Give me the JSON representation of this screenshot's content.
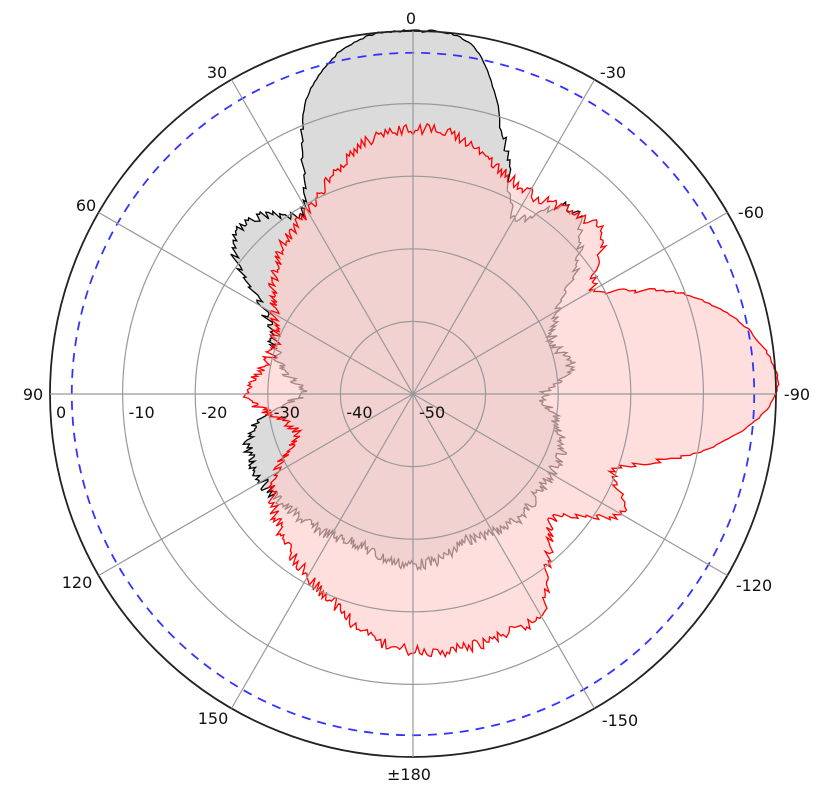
{
  "chart_data": {
    "type": "polar",
    "angle_direction": "counterclockwise-positive, 0 at top",
    "angle_ticks": [
      0,
      30,
      60,
      90,
      120,
      150,
      180,
      -150,
      -120,
      -90,
      -60,
      -30
    ],
    "angle_tick_labels": [
      "0",
      "30",
      "60",
      "90",
      "120",
      "150",
      "±180",
      "-150",
      "-120",
      "-90",
      "-60",
      "-30"
    ],
    "radial_range": [
      -50,
      0
    ],
    "radial_ticks": [
      0,
      -10,
      -20,
      -30,
      -40,
      -50
    ],
    "radial_tick_labels": [
      "0",
      "-10",
      "-20",
      "-30",
      "-40",
      "-50"
    ],
    "reference_circle_db": -3,
    "reference_circle_color": "#3333ff",
    "grid": true,
    "angles": [
      0,
      10,
      20,
      30,
      40,
      50,
      60,
      70,
      80,
      90,
      100,
      110,
      120,
      130,
      140,
      150,
      160,
      170,
      180,
      -170,
      -160,
      -150,
      -140,
      -130,
      -120,
      -110,
      -100,
      -90,
      -80,
      -70,
      -60,
      -50,
      -40,
      -30,
      -20,
      -10
    ],
    "series": [
      {
        "color": "#000000",
        "fill": "#d9d9d9",
        "values": [
          0,
          -1,
          -7,
          -20,
          -18,
          -17.5,
          -26,
          -29.5,
          -32,
          -35,
          -28,
          -26,
          -26,
          -26.5,
          -27,
          -27.5,
          -28,
          -27,
          -26.5,
          -27,
          -28.5,
          -28,
          -27.5,
          -28,
          -28,
          -28,
          -30,
          -32,
          -28,
          -29.5,
          -27,
          -20,
          -16.5,
          -22,
          -13,
          -1.5
        ]
      },
      {
        "color": "#ff0000",
        "fill": "#ffcccc",
        "values": [
          -13.5,
          -14.5,
          -18,
          -21,
          -22.5,
          -25,
          -28,
          -29.8,
          -29,
          -27,
          -31,
          -33,
          -28,
          -25,
          -23,
          -21,
          -19,
          -16,
          -14.7,
          -14.3,
          -14.5,
          -15,
          -21,
          -24,
          -17,
          -20,
          -8,
          0,
          -2.5,
          -10,
          -21,
          -16,
          -17,
          -18,
          -16.5,
          -14
        ]
      }
    ]
  }
}
